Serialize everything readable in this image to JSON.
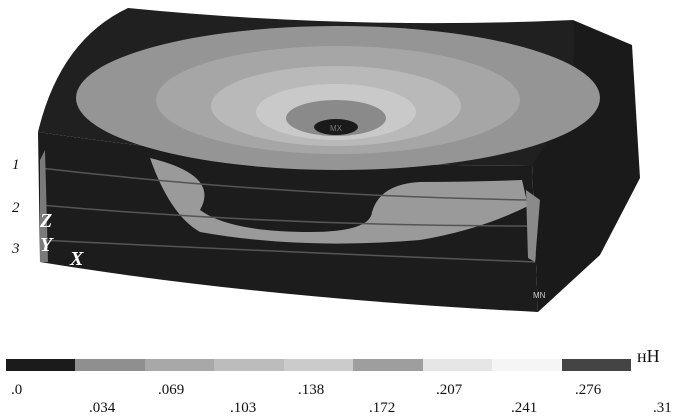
{
  "model": {
    "layer_labels": [
      "1",
      "2",
      "3"
    ],
    "axis_labels": {
      "z": "Z",
      "y": "Y",
      "x": "X"
    },
    "center_label": "MX",
    "corner_label": "MN"
  },
  "legend": {
    "unit": "нН",
    "ticks": [
      ".0",
      ".034",
      ".069",
      ".103",
      ".138",
      ".172",
      ".207",
      ".241",
      ".276",
      ".31"
    ],
    "colors": [
      "#1b1b1b",
      "#8f8f8f",
      "#a8a8a8",
      "#bcbcbc",
      "#cbcbcb",
      "#9e9e9e",
      "#e6e6e6",
      "#f5f5f5",
      "#444444"
    ]
  }
}
